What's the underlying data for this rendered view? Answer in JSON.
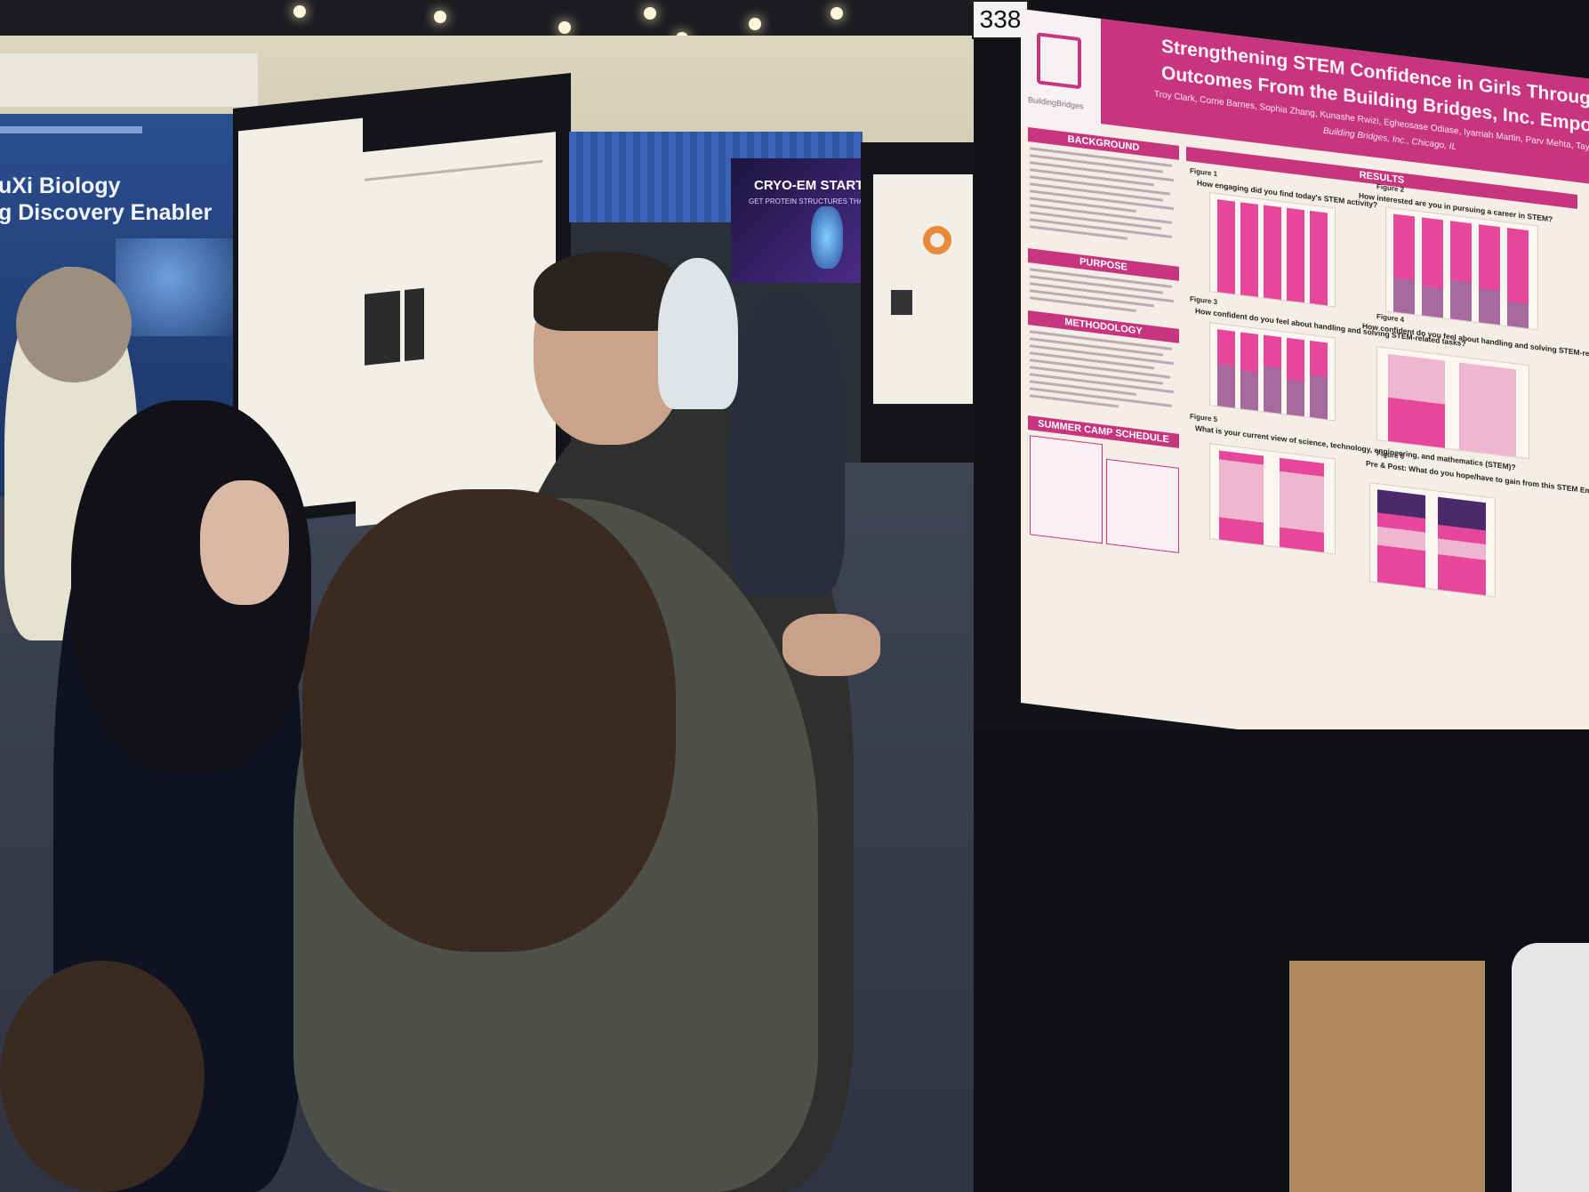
{
  "scene": {
    "board_number": "338"
  },
  "left_booth": {
    "line1": "uXi Biology",
    "line2": "g Discovery Enabler"
  },
  "cryo_banner": {
    "title": "CRYO-EM STARTS",
    "subtitle": "GET PROTEIN STRUCTURES THAT SE"
  },
  "poster": {
    "title_line1": "Strengthening STEM Confidence in Girls Through",
    "title_line2": "Outcomes From the Building Bridges, Inc. Empowe",
    "authors": "Troy Clark, Corrie Barnes, Sophia Zhang, Kunashe Rwizi, Egheosase Odiase, Iyarriah Martin, Parv Mehta, Tayza",
    "affiliation": "Building Bridges, Inc., Chicago, IL",
    "logo_text": "BuildingBridges",
    "sections": {
      "background": "BACKGROUND",
      "purpose": "PURPOSE",
      "methodology": "METHODOLOGY",
      "schedule": "SUMMER CAMP SCHEDULE",
      "results": "RESULTS"
    },
    "figures": [
      {
        "label": "Figure 1",
        "question": "How engaging did you find today's STEM activity?"
      },
      {
        "label": "Figure 2",
        "question": "How interested are you in pursuing a career in STEM?"
      },
      {
        "label": "Figure 3",
        "question": "How confident do you feel about handling and solving STEM-related tasks?"
      },
      {
        "label": "Figure 4",
        "question": "How confident do you feel about handling and solving STEM-related tasks?"
      },
      {
        "label": "Figure 5",
        "question": "What is your current view of science, technology, engineering, and mathematics (STEM)?"
      },
      {
        "label": "Figure 6",
        "question": "Pre & Post: What do you hope/have to gain from this STEM Empowerment summer camp?"
      }
    ]
  },
  "colors": {
    "poster_magenta": "#c8357f",
    "bar_pink": "#e6479a",
    "bar_mauve": "#a86a9e",
    "bar_light": "#efb7cf",
    "bar_dark": "#4a2a6a"
  }
}
